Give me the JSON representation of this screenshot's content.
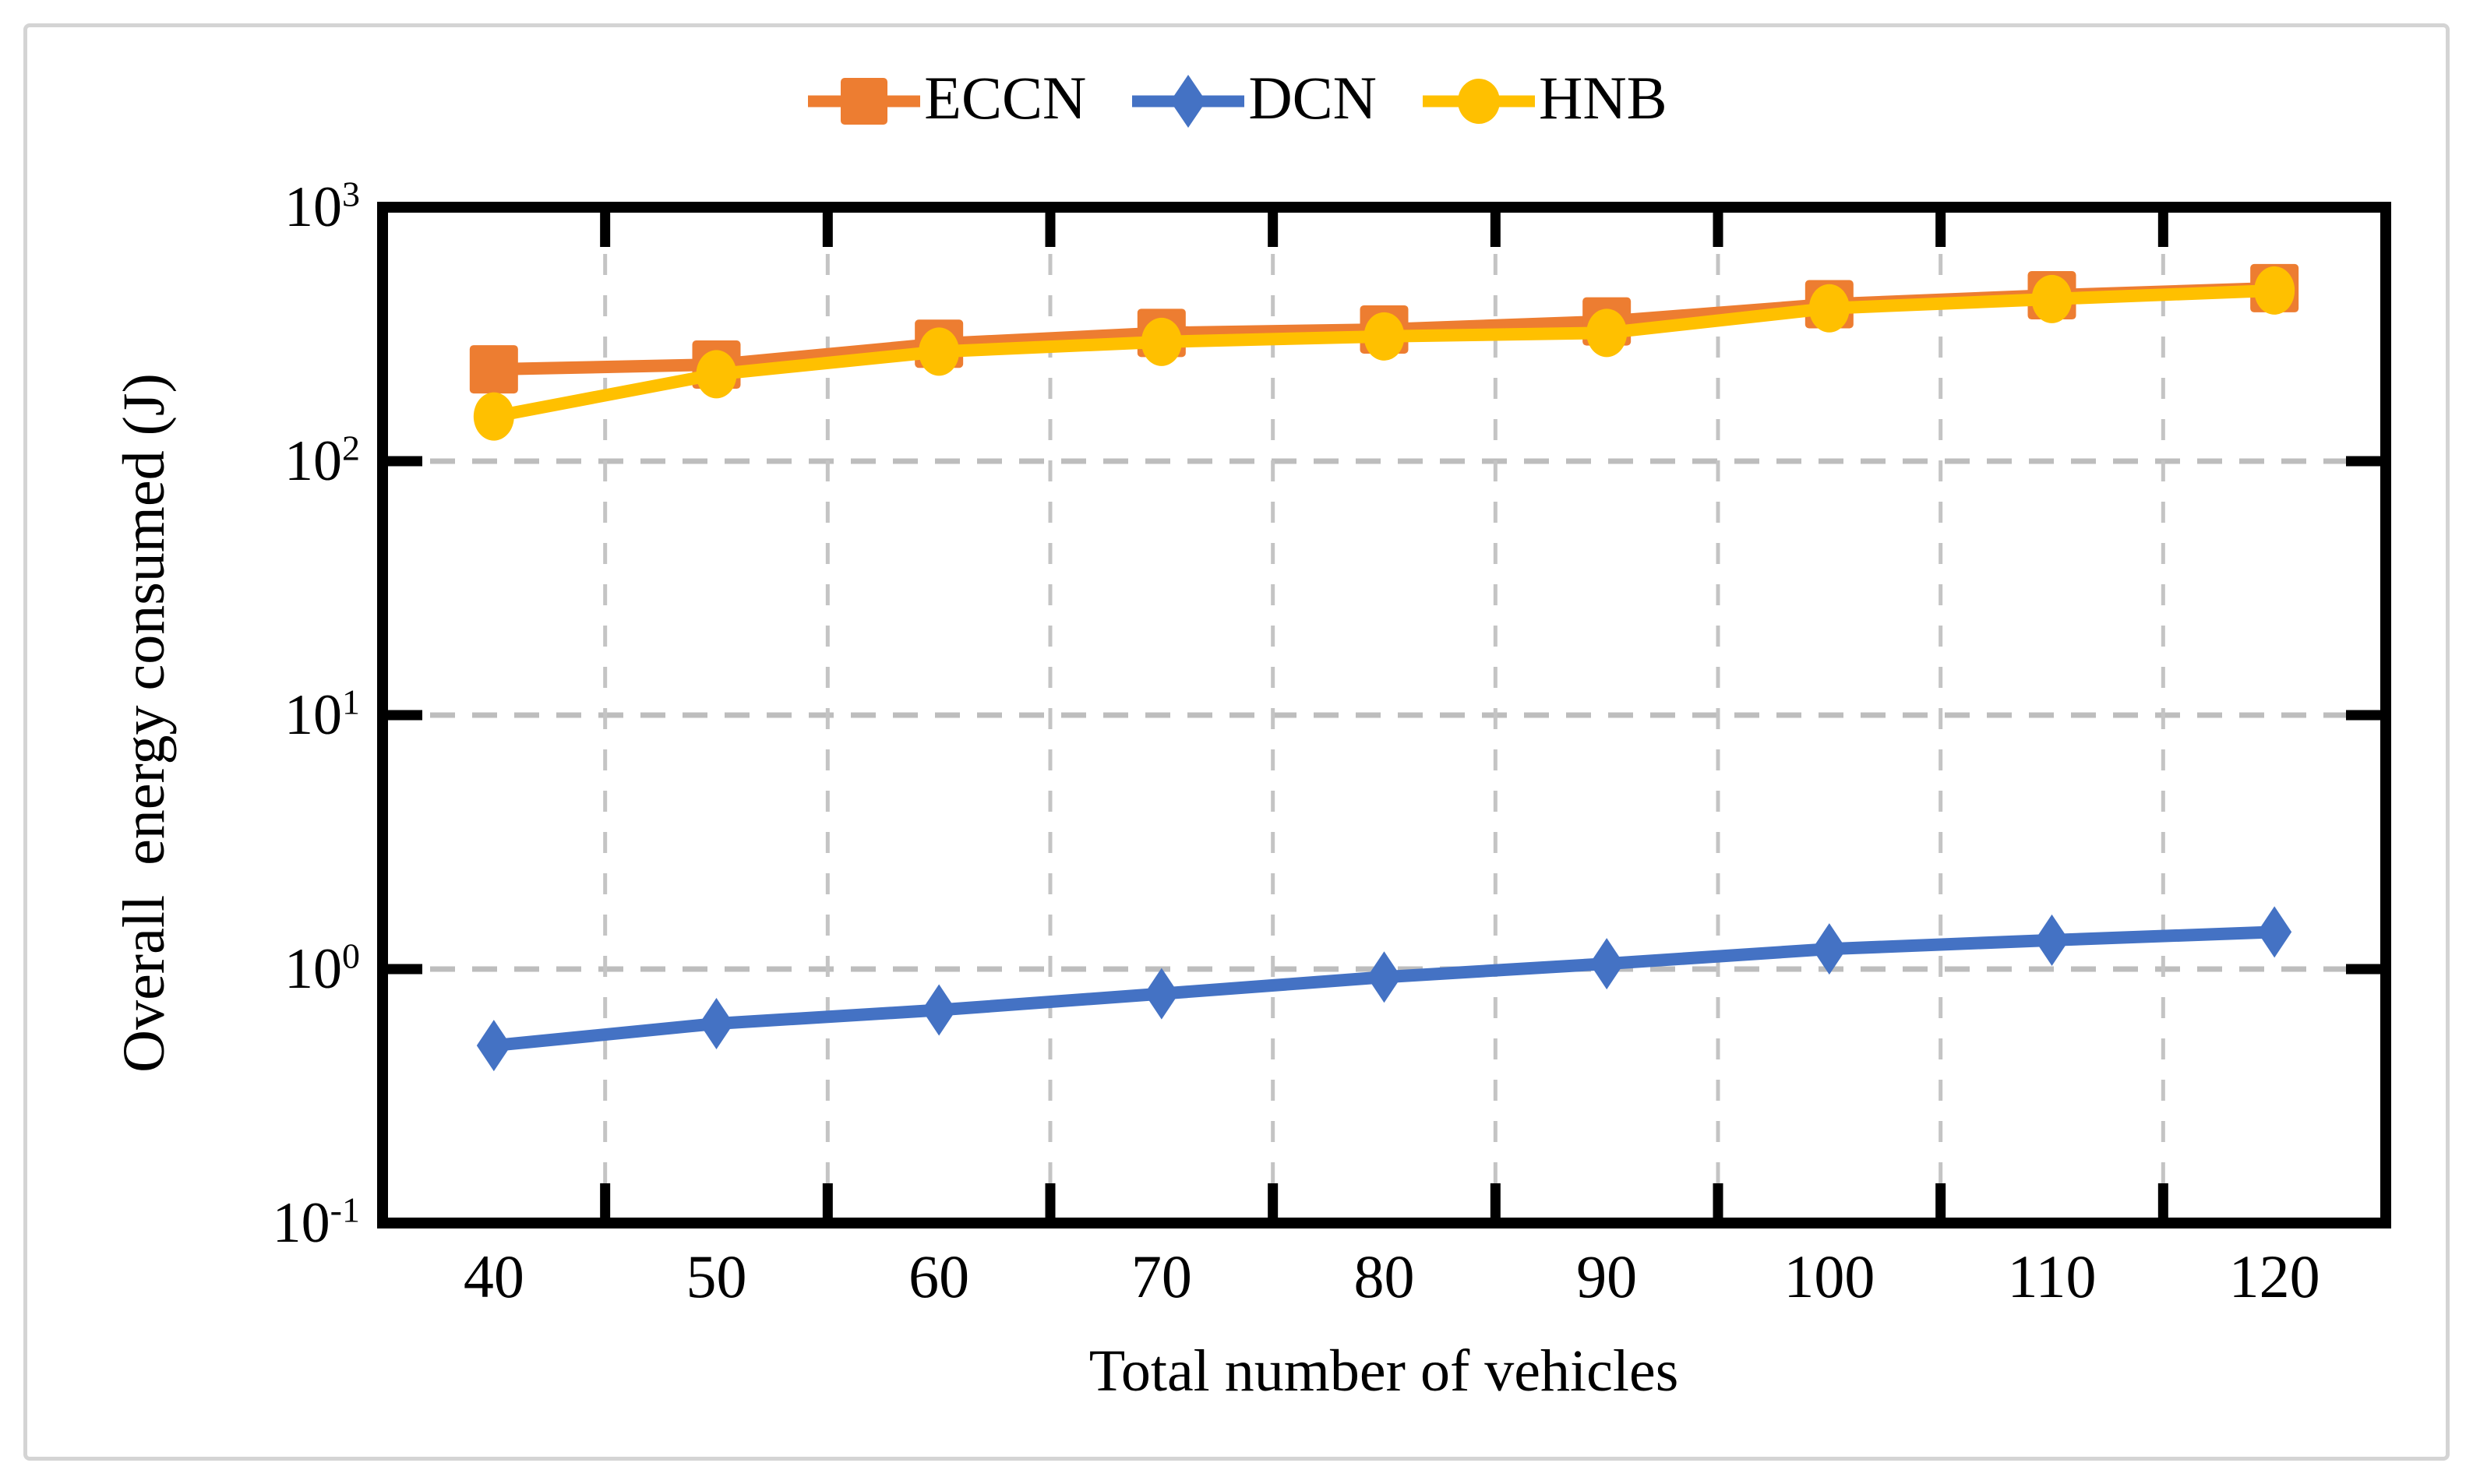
{
  "chart_data": {
    "type": "line",
    "x_label": "Total number of vehicles",
    "y_label": "Overall  energy consumed (J)",
    "x_scale": "category",
    "y_scale": "log10",
    "ylim": [
      0.1,
      1000
    ],
    "y_tick_base": "10",
    "y_tick_exponents": [
      "3",
      "2",
      "1",
      "0",
      "-1"
    ],
    "categories": [
      "40",
      "50",
      "60",
      "70",
      "80",
      "90",
      "100",
      "110",
      "120"
    ],
    "grid": "dashed",
    "legend_position": "top-center",
    "series": [
      {
        "name": "ECCN",
        "color": "#ED7D31",
        "marker": "square",
        "values": [
          230,
          240,
          290,
          320,
          330,
          355,
          415,
          450,
          480
        ]
      },
      {
        "name": "DCN",
        "color": "#4472C4",
        "marker": "diamond",
        "values": [
          0.5,
          0.61,
          0.69,
          0.8,
          0.93,
          1.05,
          1.2,
          1.3,
          1.4
        ]
      },
      {
        "name": "HNB",
        "color": "#FFC000",
        "marker": "circle",
        "values": [
          150,
          220,
          270,
          295,
          310,
          320,
          400,
          435,
          470
        ]
      }
    ]
  },
  "style": {
    "axis_color": "#000000",
    "grid_color_h": "#bdbdbd",
    "grid_color_v": "#c4c4c4",
    "frame_color": "#d4d4d4",
    "background": "#ffffff",
    "text_color": "#000000"
  }
}
